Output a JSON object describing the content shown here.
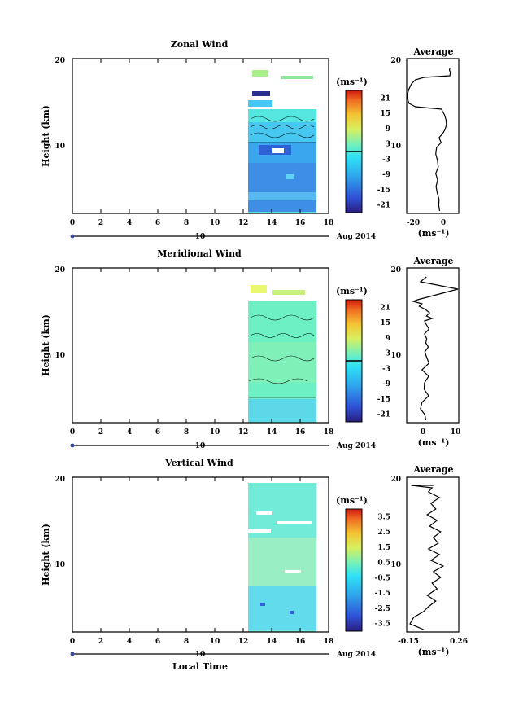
{
  "chart_data": [
    {
      "type": "heatmap",
      "title": "Zonal Wind",
      "ylabel": "Height (km)",
      "x_ticks": [
        "0",
        "2",
        "4",
        "6",
        "8",
        "10",
        "12",
        "14",
        "16",
        "18"
      ],
      "y_ticks": [
        "10",
        "20"
      ],
      "xlim": [
        0,
        18
      ],
      "ylim": [
        1.5,
        20.5
      ],
      "data_x_range": [
        12.4,
        17.1
      ],
      "data_y_range": [
        1.8,
        19.4
      ],
      "date_label": "10",
      "month_label": "Aug 2014",
      "colorbar": {
        "units": "(ms⁻¹)",
        "ticks": [
          "21",
          "15",
          "9",
          "3",
          "-3",
          "-9",
          "-15",
          "-21"
        ],
        "range": [
          -24,
          24
        ],
        "zero_line": 0
      }
    },
    {
      "type": "line",
      "title": "Average",
      "xlabel": "(ms⁻¹)",
      "x_ticks": [
        "-20",
        "0"
      ],
      "y_ticks": [
        "10",
        "20"
      ],
      "xlim": [
        -25,
        7
      ],
      "ylim": [
        1.5,
        20.5
      ],
      "profile": [
        [
          -4.6,
          1.8
        ],
        [
          -5.2,
          2.5
        ],
        [
          -5.0,
          3.2
        ],
        [
          -6.1,
          4.0
        ],
        [
          -6.9,
          4.8
        ],
        [
          -5.9,
          5.6
        ],
        [
          -7.1,
          6.4
        ],
        [
          -5.5,
          7.2
        ],
        [
          -6.0,
          8.0
        ],
        [
          -7.1,
          8.8
        ],
        [
          -6.5,
          9.6
        ],
        [
          -3.7,
          10.2
        ],
        [
          -5.0,
          10.8
        ],
        [
          -2.7,
          11.3
        ],
        [
          -1.2,
          11.8
        ],
        [
          -0.3,
          12.4
        ],
        [
          -0.6,
          13.0
        ],
        [
          -1.5,
          13.6
        ],
        [
          -2.7,
          14.0
        ],
        [
          -3.4,
          14.3
        ],
        [
          -20.0,
          14.6
        ],
        [
          -24.0,
          15.0
        ],
        [
          -25.0,
          15.6
        ],
        [
          -25.0,
          16.2
        ],
        [
          -24.0,
          16.8
        ],
        [
          -22.5,
          17.4
        ],
        [
          -20.0,
          17.9
        ],
        [
          -14.6,
          18.2
        ],
        [
          1.9,
          18.4
        ],
        [
          2.2,
          18.8
        ],
        [
          1.6,
          19.1
        ],
        [
          2.0,
          19.4
        ]
      ]
    },
    {
      "type": "heatmap",
      "title": "Meridional Wind",
      "ylabel": "Height (km)",
      "x_ticks": [
        "0",
        "2",
        "4",
        "6",
        "8",
        "10",
        "12",
        "14",
        "16",
        "18"
      ],
      "y_ticks": [
        "10",
        "20"
      ],
      "xlim": [
        0,
        18
      ],
      "ylim": [
        1.5,
        20.5
      ],
      "data_x_range": [
        12.4,
        17.1
      ],
      "data_y_range": [
        1.8,
        19.4
      ],
      "date_label": "10",
      "month_label": "Aug 2014",
      "colorbar": {
        "units": "(ms⁻¹)",
        "ticks": [
          "21",
          "15",
          "9",
          "3",
          "-3",
          "-9",
          "-15",
          "-21"
        ],
        "range": [
          -24,
          24
        ],
        "zero_line": 0
      }
    },
    {
      "type": "line",
      "title": "Average",
      "xlabel": "(ms⁻¹)",
      "x_ticks": [
        "0",
        "10"
      ],
      "y_ticks": [
        "10",
        "20"
      ],
      "xlim": [
        -5,
        11
      ],
      "ylim": [
        1.5,
        20.5
      ],
      "profile": [
        [
          0.8,
          1.8
        ],
        [
          0.5,
          2.5
        ],
        [
          -0.9,
          3.2
        ],
        [
          -0.4,
          4.0
        ],
        [
          1.7,
          4.8
        ],
        [
          0.3,
          5.6
        ],
        [
          0.4,
          6.4
        ],
        [
          1.7,
          7.2
        ],
        [
          -0.4,
          8.0
        ],
        [
          1.8,
          8.8
        ],
        [
          1.0,
          9.6
        ],
        [
          0.5,
          10.2
        ],
        [
          1.6,
          10.8
        ],
        [
          0.8,
          11.3
        ],
        [
          1.1,
          11.8
        ],
        [
          0.4,
          12.4
        ],
        [
          1.8,
          13.0
        ],
        [
          0.9,
          13.6
        ],
        [
          0.4,
          14.0
        ],
        [
          2.8,
          14.3
        ],
        [
          1.0,
          14.6
        ],
        [
          2.0,
          15.0
        ],
        [
          0.7,
          15.4
        ],
        [
          -1.3,
          15.8
        ],
        [
          -0.4,
          16.1
        ],
        [
          -3.2,
          16.4
        ],
        [
          -1.8,
          16.6
        ],
        [
          11.0,
          17.9
        ],
        [
          -0.9,
          18.8
        ],
        [
          1.0,
          19.4
        ]
      ]
    },
    {
      "type": "heatmap",
      "title": "Vertical Wind",
      "xlabel": "Local Time",
      "ylabel": "Height (km)",
      "x_ticks": [
        "0",
        "2",
        "4",
        "6",
        "8",
        "10",
        "12",
        "14",
        "16",
        "18"
      ],
      "y_ticks": [
        "10",
        "20"
      ],
      "xlim": [
        0,
        18
      ],
      "ylim": [
        1.5,
        20.5
      ],
      "data_x_range": [
        12.4,
        17.1
      ],
      "data_y_range": [
        1.8,
        19.4
      ],
      "date_label": "10",
      "month_label": "Aug 2014",
      "colorbar": {
        "units": "(ms⁻¹)",
        "ticks": [
          "3.5",
          "2.5",
          "1.5",
          "0.5",
          "-0.5",
          "-1.5",
          "-2.5",
          "-3.5"
        ],
        "range": [
          -4,
          4
        ],
        "zero_line": null
      }
    },
    {
      "type": "line",
      "title": "Average",
      "xlabel": "(ms⁻¹)",
      "x_ticks": [
        "-0.15",
        "0.26"
      ],
      "y_ticks": [
        "10",
        "20"
      ],
      "xlim": [
        -0.15,
        0.26
      ],
      "ylim": [
        1.5,
        20.5
      ],
      "profile": [
        [
          -0.02,
          1.8
        ],
        [
          -0.13,
          2.5
        ],
        [
          -0.1,
          3.3
        ],
        [
          -0.02,
          4.0
        ],
        [
          0.02,
          4.6
        ],
        [
          0.08,
          5.3
        ],
        [
          0.01,
          6.0
        ],
        [
          0.09,
          6.8
        ],
        [
          0.05,
          7.5
        ],
        [
          0.12,
          8.2
        ],
        [
          0.06,
          8.9
        ],
        [
          0.14,
          9.6
        ],
        [
          0.04,
          10.3
        ],
        [
          0.11,
          11.0
        ],
        [
          0.02,
          11.7
        ],
        [
          0.1,
          12.4
        ],
        [
          0.06,
          13.1
        ],
        [
          0.12,
          13.8
        ],
        [
          0.03,
          14.5
        ],
        [
          0.09,
          15.2
        ],
        [
          0.01,
          15.9
        ],
        [
          0.08,
          16.6
        ],
        [
          0.04,
          17.3
        ],
        [
          0.11,
          18.0
        ],
        [
          0.02,
          18.7
        ],
        [
          0.05,
          19.2
        ],
        [
          -0.12,
          19.5
        ],
        [
          0.06,
          19.5
        ]
      ]
    }
  ]
}
